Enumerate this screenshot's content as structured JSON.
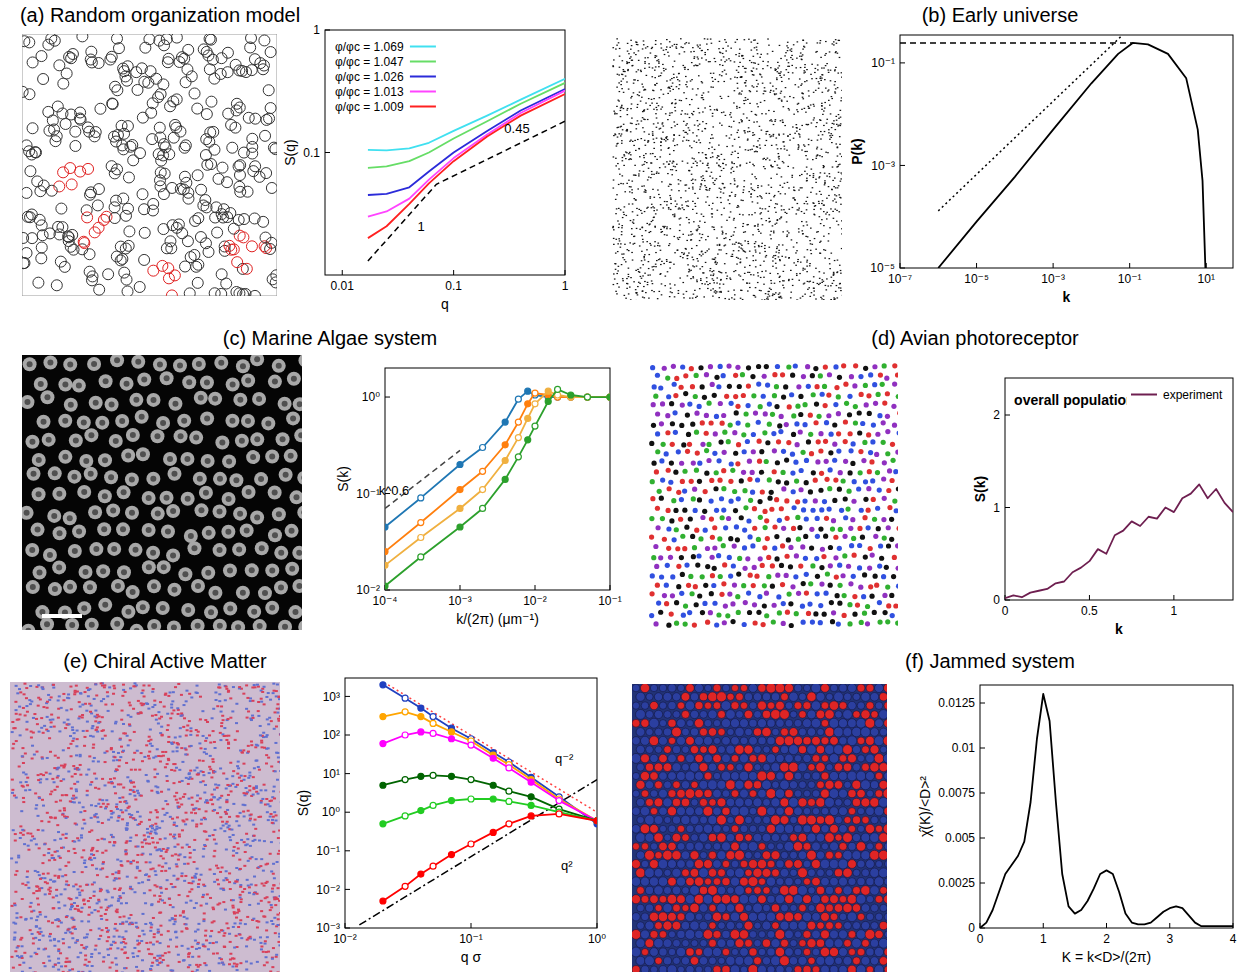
{
  "chart_data": [
    {
      "type": "line",
      "title": "(a) Random organization model",
      "x_label": "q",
      "y_label": "S(q)",
      "log": true,
      "xlim": [
        0.007,
        1
      ],
      "ylim": [
        0.01,
        1
      ],
      "xticks": [
        0.01,
        0.1,
        1
      ],
      "yticks": [
        0.1,
        1
      ],
      "legend": "top-left",
      "series": [
        {
          "name": "φ/φc = 1.069",
          "color": "#40e0f0",
          "x": [
            0.017,
            0.025,
            0.04,
            0.06,
            0.1,
            0.2,
            0.4,
            1
          ],
          "values": [
            0.105,
            0.104,
            0.108,
            0.12,
            0.15,
            0.2,
            0.27,
            0.4
          ]
        },
        {
          "name": "φ/φc = 1.047",
          "color": "#66dd66",
          "x": [
            0.017,
            0.025,
            0.04,
            0.06,
            0.1,
            0.2,
            0.4,
            1
          ],
          "values": [
            0.075,
            0.077,
            0.085,
            0.1,
            0.13,
            0.18,
            0.25,
            0.37
          ]
        },
        {
          "name": "φ/φc = 1.026",
          "color": "#2b2bd9",
          "x": [
            0.017,
            0.025,
            0.04,
            0.06,
            0.1,
            0.2,
            0.4,
            1
          ],
          "values": [
            0.045,
            0.046,
            0.052,
            0.07,
            0.1,
            0.15,
            0.22,
            0.33
          ]
        },
        {
          "name": "φ/φc = 1.013",
          "color": "#ff44ff",
          "x": [
            0.017,
            0.025,
            0.04,
            0.06,
            0.1,
            0.2,
            0.4,
            1
          ],
          "values": [
            0.03,
            0.033,
            0.042,
            0.06,
            0.09,
            0.14,
            0.21,
            0.32
          ]
        },
        {
          "name": "φ/φc = 1.009",
          "color": "#ff2020",
          "x": [
            0.017,
            0.025,
            0.04,
            0.06,
            0.1,
            0.2,
            0.4,
            1
          ],
          "values": [
            0.02,
            0.025,
            0.038,
            0.056,
            0.085,
            0.135,
            0.2,
            0.3
          ]
        }
      ],
      "guides": [
        {
          "x": [
            0.017,
            0.07,
            1
          ],
          "values": [
            0.013,
            0.055,
            0.18
          ],
          "color": "#000000",
          "line_style": "dashed",
          "labels": [
            "1",
            "0.45"
          ]
        }
      ]
    },
    {
      "type": "line",
      "title": "(b) Early universe",
      "x_label": "k",
      "y_label": "P(k)",
      "log": true,
      "xlim": [
        1e-07,
        50
      ],
      "ylim": [
        1e-05,
        0.35
      ],
      "xticks": [
        {
          "value": 1e-07,
          "label": "10⁻⁷"
        },
        {
          "value": 1e-05,
          "label": "10⁻⁵"
        },
        {
          "value": 0.001,
          "label": "10⁻³"
        },
        {
          "value": 0.1,
          "label": "10⁻¹"
        },
        {
          "value": 10,
          "label": "10¹"
        }
      ],
      "yticks": [
        {
          "value": 1e-05,
          "label": "10⁻⁵"
        },
        {
          "value": 0.001,
          "label": "10⁻³"
        },
        {
          "value": 0.1,
          "label": "10⁻¹"
        }
      ],
      "series": [
        {
          "color": "#000000",
          "x": [
            1e-06,
            1e-05,
            0.0001,
            0.001,
            0.01,
            0.05,
            0.12,
            0.3,
            1,
            3,
            6,
            8,
            9.5
          ],
          "values": [
            1e-05,
            8e-05,
            0.0006,
            0.005,
            0.04,
            0.15,
            0.245,
            0.23,
            0.15,
            0.05,
            0.005,
            0.0005,
            1e-05
          ]
        }
      ],
      "guides": [
        {
          "x": [
            1e-06,
            0.06
          ],
          "values": [
            0.00013,
            0.33
          ],
          "color": "#000000",
          "line_style": "dotted"
        },
        {
          "x": [
            1e-07,
            0.12
          ],
          "values": [
            0.245,
            0.245
          ],
          "color": "#000000",
          "line_style": "dashed"
        }
      ]
    },
    {
      "type": "line",
      "title": "(c) Marine Algae system",
      "x_label": "k/(2π) (μm⁻¹)",
      "y_label": "S(k)",
      "log": true,
      "xlim": [
        0.0001,
        0.1
      ],
      "ylim": [
        0.01,
        2
      ],
      "xticks": [
        {
          "value": 0.0001,
          "label": "10⁻⁴"
        },
        {
          "value": 0.001,
          "label": "10⁻³"
        },
        {
          "value": 0.01,
          "label": "10⁻²"
        },
        {
          "value": 0.1,
          "label": "10⁻¹"
        }
      ],
      "yticks": [
        {
          "value": 0.01,
          "label": "10⁻²"
        },
        {
          "value": 0.1,
          "label": "10⁻¹"
        },
        {
          "value": 1,
          "label": "10⁰"
        }
      ],
      "series": [
        {
          "color": "#1f77b4",
          "marker": "circle",
          "x": [
            0.0001,
            0.0003,
            0.001,
            0.002,
            0.004,
            0.006,
            0.008,
            0.01,
            0.015,
            0.02,
            0.03,
            0.05,
            0.1
          ],
          "values": [
            0.045,
            0.09,
            0.2,
            0.3,
            0.55,
            0.95,
            1.15,
            1.05,
            1.0,
            1.0,
            1.0,
            1.0,
            1.0
          ]
        },
        {
          "color": "#ff7f0e",
          "marker": "circle",
          "x": [
            0.0001,
            0.0003,
            0.001,
            0.002,
            0.004,
            0.006,
            0.008,
            0.01,
            0.015,
            0.02,
            0.03,
            0.05,
            0.1
          ],
          "values": [
            0.025,
            0.05,
            0.11,
            0.17,
            0.32,
            0.55,
            0.85,
            1.1,
            1.05,
            1.0,
            1.0,
            1.0,
            1.0
          ]
        },
        {
          "color": "#f0b040",
          "marker": "circle",
          "x": [
            0.0001,
            0.0003,
            0.001,
            0.002,
            0.004,
            0.006,
            0.008,
            0.01,
            0.015,
            0.02,
            0.03,
            0.05,
            0.1
          ],
          "values": [
            0.018,
            0.035,
            0.07,
            0.11,
            0.22,
            0.38,
            0.6,
            0.85,
            1.15,
            1.05,
            1.0,
            1.0,
            1.0
          ]
        },
        {
          "color": "#2ca02c",
          "marker": "circle",
          "x": [
            0.0001,
            0.0003,
            0.001,
            0.002,
            0.004,
            0.006,
            0.008,
            0.01,
            0.015,
            0.02,
            0.03,
            0.05,
            0.1
          ],
          "values": [
            0.011,
            0.022,
            0.045,
            0.07,
            0.14,
            0.24,
            0.36,
            0.5,
            0.9,
            1.2,
            1.05,
            1.0,
            1.0
          ]
        }
      ],
      "guides": [
        {
          "x": [
            0.0001,
            0.001
          ],
          "values": [
            0.07,
            0.28
          ],
          "color": "#444444",
          "line_style": "dashed",
          "labels": [
            "k^0.6"
          ]
        }
      ]
    },
    {
      "type": "line",
      "title": "(d) Avian photoreceptor",
      "x_label": "k",
      "y_label": "S(k)",
      "log": false,
      "xlim": [
        0,
        1.35
      ],
      "ylim": [
        0,
        2.4
      ],
      "xticks": [
        0,
        0.5,
        1
      ],
      "yticks": [
        0,
        1,
        2
      ],
      "legend": "top-right",
      "annotations": [
        "overall population"
      ],
      "series": [
        {
          "name": "experiment",
          "color": "#6e1f50",
          "x": [
            0,
            0.05,
            0.1,
            0.15,
            0.2,
            0.25,
            0.3,
            0.35,
            0.4,
            0.45,
            0.5,
            0.55,
            0.6,
            0.65,
            0.7,
            0.75,
            0.8,
            0.85,
            0.9,
            0.95,
            1.0,
            1.05,
            1.1,
            1.15,
            1.2,
            1.25,
            1.3,
            1.35
          ],
          "values": [
            0.02,
            0.05,
            0.03,
            0.08,
            0.1,
            0.12,
            0.18,
            0.2,
            0.3,
            0.35,
            0.42,
            0.55,
            0.5,
            0.7,
            0.75,
            0.85,
            0.8,
            0.9,
            0.88,
            1.0,
            0.95,
            1.1,
            1.15,
            1.25,
            1.1,
            1.2,
            1.05,
            0.95
          ]
        }
      ]
    },
    {
      "type": "line",
      "title": "(e) Chiral Active Matter",
      "x_label": "q σ",
      "y_label": "S(q)",
      "log": true,
      "xlim": [
        0.01,
        1
      ],
      "ylim": [
        0.001,
        3000
      ],
      "xticks": [
        {
          "value": 0.01,
          "label": "10⁻²"
        },
        {
          "value": 0.1,
          "label": "10⁻¹"
        },
        {
          "value": 1,
          "label": "10⁰"
        }
      ],
      "yticks": [
        {
          "value": 0.001,
          "label": "10⁻³"
        },
        {
          "value": 0.01,
          "label": "10⁻²"
        },
        {
          "value": 0.1,
          "label": "10⁻¹"
        },
        {
          "value": 1,
          "label": "10⁰"
        },
        {
          "value": 10,
          "label": "10¹"
        },
        {
          "value": 100,
          "label": "10²"
        },
        {
          "value": 1000,
          "label": "10³"
        }
      ],
      "series": [
        {
          "color": "#2040c0",
          "marker": "circle",
          "x": [
            0.02,
            0.03,
            0.04,
            0.05,
            0.07,
            0.1,
            0.15,
            0.2,
            0.3,
            0.5,
            1
          ],
          "values": [
            2000,
            900,
            500,
            300,
            150,
            80,
            35,
            20,
            8,
            2.5,
            0.5
          ]
        },
        {
          "color": "#ffa500",
          "marker": "circle",
          "x": [
            0.02,
            0.03,
            0.04,
            0.05,
            0.07,
            0.1,
            0.15,
            0.2,
            0.3,
            0.5,
            1
          ],
          "values": [
            300,
            400,
            300,
            200,
            120,
            70,
            30,
            17,
            7,
            2.2,
            0.6
          ]
        },
        {
          "color": "#ff00ff",
          "marker": "circle",
          "x": [
            0.02,
            0.03,
            0.04,
            0.05,
            0.07,
            0.1,
            0.15,
            0.2,
            0.3,
            0.5,
            1
          ],
          "values": [
            60,
            100,
            120,
            110,
            80,
            55,
            25,
            14,
            6,
            2,
            0.6
          ]
        },
        {
          "color": "#006400",
          "marker": "circle",
          "x": [
            0.02,
            0.03,
            0.04,
            0.05,
            0.07,
            0.1,
            0.15,
            0.2,
            0.3,
            0.5,
            1
          ],
          "values": [
            5,
            7,
            8.5,
            9,
            8.5,
            7,
            5,
            3.5,
            2.5,
            1.2,
            0.6
          ]
        },
        {
          "color": "#22cc22",
          "marker": "circle",
          "x": [
            0.02,
            0.03,
            0.04,
            0.05,
            0.07,
            0.1,
            0.15,
            0.2,
            0.3,
            0.5,
            1
          ],
          "values": [
            0.5,
            0.8,
            1.1,
            1.5,
            2,
            2.2,
            2.2,
            1.9,
            1.5,
            1,
            0.6
          ]
        },
        {
          "color": "#ff0000",
          "marker": "circle",
          "x": [
            0.02,
            0.03,
            0.04,
            0.05,
            0.07,
            0.1,
            0.15,
            0.2,
            0.3,
            0.5,
            1
          ],
          "values": [
            0.005,
            0.012,
            0.025,
            0.04,
            0.08,
            0.15,
            0.3,
            0.5,
            0.8,
            0.9,
            0.6
          ]
        }
      ],
      "guides": [
        {
          "x": [
            0.022,
            1
          ],
          "values": [
            2000,
            1
          ],
          "color": "#ff4040",
          "line_style": "dotted",
          "labels": [
            "q⁻²"
          ]
        },
        {
          "x": [
            0.013,
            1
          ],
          "values": [
            0.0012,
            7
          ],
          "color": "#000000",
          "line_style": "dashdot",
          "labels": [
            "q²"
          ]
        }
      ]
    },
    {
      "type": "line",
      "title": "(f) Jammed system",
      "x_label": "K = k<D>/(2π)",
      "y_label": "χ̂(K)/<D>²",
      "log": false,
      "xlim": [
        0,
        4
      ],
      "ylim": [
        0,
        0.0135
      ],
      "xticks": [
        0,
        1,
        2,
        3,
        4
      ],
      "yticks": [
        0,
        0.0025,
        0.005,
        0.0075,
        0.01,
        0.0125
      ],
      "series": [
        {
          "color": "#000000",
          "x": [
            0,
            0.1,
            0.2,
            0.3,
            0.4,
            0.5,
            0.6,
            0.7,
            0.8,
            0.9,
            1.0,
            1.1,
            1.2,
            1.3,
            1.4,
            1.5,
            1.6,
            1.7,
            1.8,
            1.9,
            2.0,
            2.1,
            2.2,
            2.3,
            2.4,
            2.5,
            2.6,
            2.7,
            2.8,
            2.9,
            3.0,
            3.1,
            3.2,
            3.3,
            3.4,
            3.5,
            3.6,
            3.7,
            3.8,
            3.9,
            4.0
          ],
          "values": [
            0,
            0.0003,
            0.001,
            0.002,
            0.003,
            0.0035,
            0.004,
            0.0048,
            0.007,
            0.0105,
            0.013,
            0.0115,
            0.007,
            0.003,
            0.0012,
            0.0008,
            0.001,
            0.0015,
            0.0022,
            0.003,
            0.0032,
            0.003,
            0.002,
            0.0008,
            0.0003,
            0.0002,
            0.0002,
            0.0003,
            0.0006,
            0.0009,
            0.0011,
            0.0012,
            0.0011,
            0.0007,
            0.0003,
            0.0001,
            0.0001,
            0.0001,
            0.0001,
            0.0001,
            0.0001
          ]
        }
      ]
    }
  ]
}
